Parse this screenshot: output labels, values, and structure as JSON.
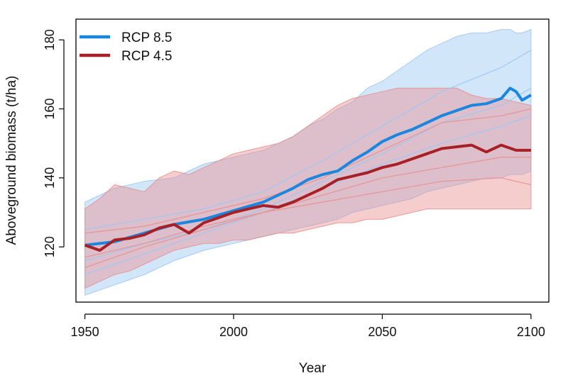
{
  "chart_data": {
    "type": "line",
    "xlabel": "Year",
    "ylabel": "Aboveground biomass (t/ha)",
    "xlim": [
      1947,
      2106
    ],
    "ylim": [
      104,
      186
    ],
    "xticks": [
      1950,
      2000,
      2050,
      2100
    ],
    "yticks": [
      120,
      140,
      160,
      180
    ],
    "grid": false,
    "legend": {
      "placement": "top-left"
    },
    "series": [
      {
        "name": "RCP 8.5",
        "color": "#1a86e0",
        "band_color": "#9cc7f5",
        "x": [
          1950,
          1960,
          1970,
          1980,
          1990,
          2000,
          2010,
          2015,
          2020,
          2025,
          2030,
          2035,
          2040,
          2045,
          2050,
          2055,
          2060,
          2065,
          2070,
          2075,
          2080,
          2085,
          2090,
          2093,
          2095,
          2097,
          2100
        ],
        "y": [
          120.5,
          121.5,
          124.0,
          126.5,
          128.0,
          130.5,
          133.0,
          135.0,
          137.0,
          139.5,
          141.0,
          142.0,
          145.0,
          147.5,
          150.5,
          152.5,
          154.0,
          156.0,
          158.0,
          159.5,
          161.0,
          161.5,
          163.0,
          166.0,
          165.0,
          162.5,
          164.0
        ],
        "band_upper": [
          133,
          137,
          139,
          140,
          144,
          146,
          148,
          150,
          152,
          155,
          157,
          160,
          162,
          166,
          168,
          171,
          174,
          177,
          179,
          181,
          182,
          182,
          183,
          183,
          182,
          182,
          183
        ],
        "band_lower": [
          106,
          109,
          112,
          116,
          119,
          121,
          123,
          124,
          125,
          126,
          127,
          128,
          130,
          131,
          132,
          133,
          134,
          136,
          137,
          138,
          139,
          140,
          140,
          141,
          141,
          141,
          142
        ],
        "members": [
          {
            "x": [
              1950,
              1970,
              1990,
              2010,
              2030,
              2050,
              2070,
              2090,
              2100
            ],
            "y": [
              116,
              121,
              125,
              131,
              139,
              147,
              156,
              161,
              166
            ]
          },
          {
            "x": [
              1950,
              1970,
              1990,
              2010,
              2030,
              2050,
              2070,
              2090,
              2100
            ],
            "y": [
              125,
              128,
              131,
              136,
              145,
              155,
              165,
              172,
              177
            ]
          },
          {
            "x": [
              1950,
              1970,
              1990,
              2010,
              2030,
              2050,
              2070,
              2090,
              2100
            ],
            "y": [
              112,
              118,
              124,
              130,
              137,
              144,
              150,
              155,
              158
            ]
          }
        ]
      },
      {
        "name": "RCP 4.5",
        "color": "#a72026",
        "band_color": "#e89090",
        "x": [
          1950,
          1955,
          1960,
          1965,
          1970,
          1975,
          1980,
          1985,
          1990,
          1995,
          2000,
          2005,
          2010,
          2015,
          2020,
          2025,
          2030,
          2035,
          2040,
          2045,
          2050,
          2055,
          2060,
          2065,
          2070,
          2075,
          2080,
          2085,
          2090,
          2095,
          2100
        ],
        "y": [
          120.5,
          119.0,
          122.0,
          122.5,
          123.5,
          125.5,
          126.5,
          124.0,
          127.0,
          128.5,
          130.0,
          131.0,
          132.0,
          131.5,
          133.0,
          135.0,
          137.0,
          139.5,
          140.5,
          141.5,
          143.0,
          144.0,
          145.5,
          147.0,
          148.5,
          149.0,
          149.5,
          147.5,
          149.5,
          148.0,
          148.0
        ],
        "band_upper": [
          131,
          134,
          138,
          137,
          136,
          140,
          142,
          141,
          143,
          145,
          147,
          148,
          149,
          150,
          152,
          155,
          158,
          161,
          163,
          164,
          165,
          166,
          166,
          166,
          166,
          166,
          164,
          163,
          163,
          162,
          161
        ],
        "band_lower": [
          108,
          110,
          112,
          113,
          115,
          117,
          119,
          120,
          121,
          121,
          122,
          122,
          123,
          124,
          124,
          125,
          126,
          127,
          127,
          128,
          128,
          129,
          130,
          131,
          131,
          131,
          131,
          131,
          131,
          131,
          131
        ],
        "members": [
          {
            "x": [
              1950,
              1970,
              1990,
              2010,
              2030,
              2050,
              2070,
              2090,
              2100
            ],
            "y": [
              114,
              120,
              125,
              130,
              135,
              140,
              143,
              146,
              146
            ]
          },
          {
            "x": [
              1950,
              1970,
              1990,
              2010,
              2030,
              2050,
              2070,
              2090,
              2100
            ],
            "y": [
              124,
              126,
              130,
              134,
              140,
              148,
              156,
              158,
              160
            ]
          },
          {
            "x": [
              1950,
              1970,
              1990,
              2010,
              2030,
              2050,
              2070,
              2090,
              2100
            ],
            "y": [
              117,
              121,
              126,
              130,
              133,
              136,
              139,
              140,
              138
            ]
          }
        ]
      }
    ]
  }
}
